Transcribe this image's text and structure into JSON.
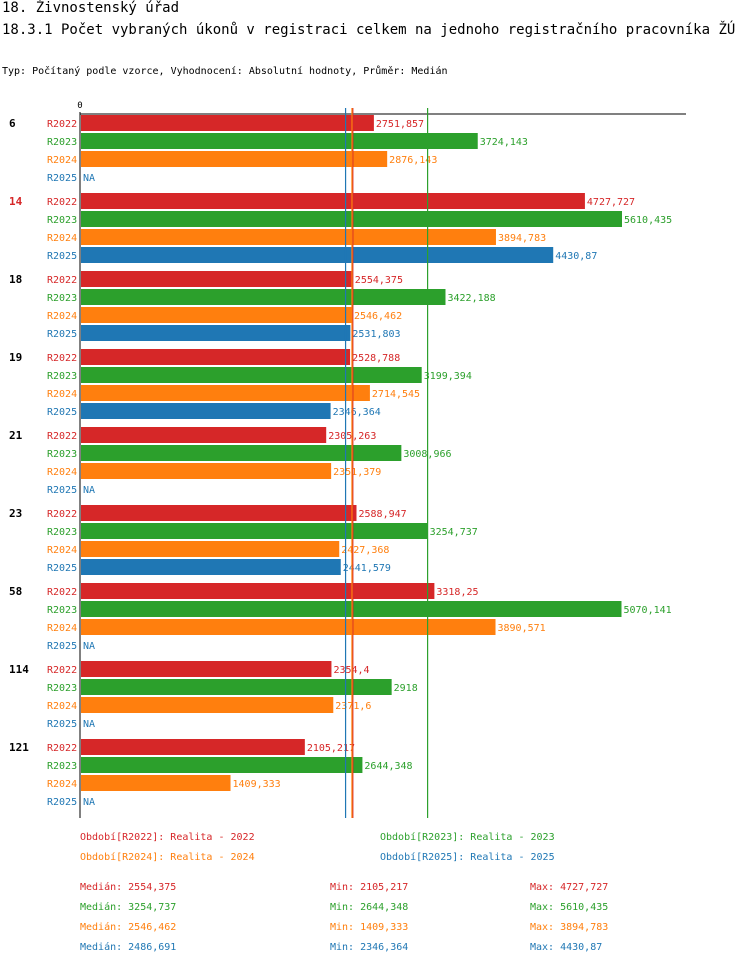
{
  "header": {
    "title": "18. Živnostenský úřad",
    "subtitle_line": "18.3.1 Počet vybraných úkonů v registraci celkem na jednoho registračního pracovník­a ŽÚ",
    "subtitle_line_display": "18.3.1 Počet vybraných úkonů v registraci celkem na jednoho registračního pracovníka ŽÚ",
    "info": "Typ: Počítaný podle vzorce, Vyhodnocení: Absolutní hodnoty, Průměr: Medián"
  },
  "colors": {
    "R2022": "#d62728",
    "R2023": "#2ca02c",
    "R2024": "#ff7f0e",
    "R2025": "#1f77b4",
    "highlight_group": "#d62728"
  },
  "chart_data": {
    "type": "bar",
    "orientation": "horizontal",
    "title": "18.3.1 Počet vybraných úkonů v registraci celkem na jednoho registračního pracovníka ŽÚ",
    "xlabel": "",
    "ylabel": "",
    "x_tick_labels": [
      "0"
    ],
    "xlim": [
      0,
      5610.435
    ],
    "grid": false,
    "categories": [
      "6",
      "14",
      "18",
      "19",
      "21",
      "23",
      "58",
      "114",
      "121"
    ],
    "highlighted_category": "14",
    "series": [
      {
        "name": "R2022",
        "values": [
          2751.857,
          4727.727,
          2554.375,
          2528.788,
          2305.263,
          2588.947,
          3318.25,
          2354.4,
          2105.217
        ],
        "labels": [
          "2751,857",
          "4727,727",
          "2554,375",
          "2528,788",
          "2305,263",
          "2588,947",
          "3318,25",
          "2354,4",
          "2105,217"
        ]
      },
      {
        "name": "R2023",
        "values": [
          3724.143,
          5610.435,
          3422.188,
          3199.394,
          3008.966,
          3254.737,
          5070.141,
          2918,
          2644.348
        ],
        "labels": [
          "3724,143",
          "5610,435",
          "3422,188",
          "3199,394",
          "3008,966",
          "3254,737",
          "5070,141",
          "2918",
          "2644,348"
        ]
      },
      {
        "name": "R2024",
        "values": [
          2876.143,
          3894.783,
          2546.462,
          2714.545,
          2351.379,
          2427.368,
          3890.571,
          2371.6,
          1409.333
        ],
        "labels": [
          "2876,143",
          "3894,783",
          "2546,462",
          "2714,545",
          "2351,379",
          "2427,368",
          "3890,571",
          "2371,6",
          "1409,333"
        ]
      },
      {
        "name": "R2025",
        "values": [
          null,
          4430.87,
          2531.803,
          2346.364,
          null,
          2441.579,
          null,
          null,
          null
        ],
        "labels": [
          "NA",
          "4430,87",
          "2531,803",
          "2346,364",
          "NA",
          "2441,579",
          "NA",
          "NA",
          "NA"
        ]
      }
    ],
    "median_lines": [
      {
        "series": "R2022",
        "value": 2554.375
      },
      {
        "series": "R2023",
        "value": 3254.737
      },
      {
        "series": "R2024",
        "value": 2546.462
      },
      {
        "series": "R2025",
        "value": 2486.691
      }
    ],
    "legend": [
      {
        "series": "R2022",
        "label": "Období[R2022]: Realita - 2022"
      },
      {
        "series": "R2023",
        "label": "Období[R2023]: Realita - 2023"
      },
      {
        "series": "R2024",
        "label": "Období[R2024]: Realita - 2024"
      },
      {
        "series": "R2025",
        "label": "Období[R2025]: Realita - 2025"
      }
    ],
    "legend_position": "bottom",
    "stats": [
      {
        "series": "R2022",
        "median": "Medián: 2554,375",
        "min": "Min: 2105,217",
        "max": "Max: 4727,727"
      },
      {
        "series": "R2023",
        "median": "Medián: 3254,737",
        "min": "Min: 2644,348",
        "max": "Max: 5610,435"
      },
      {
        "series": "R2024",
        "median": "Medián: 2546,462",
        "min": "Min: 1409,333",
        "max": "Max: 3894,783"
      },
      {
        "series": "R2025",
        "median": "Medián: 2486,691",
        "min": "Min: 2346,364",
        "max": "Max: 4430,87"
      }
    ]
  }
}
